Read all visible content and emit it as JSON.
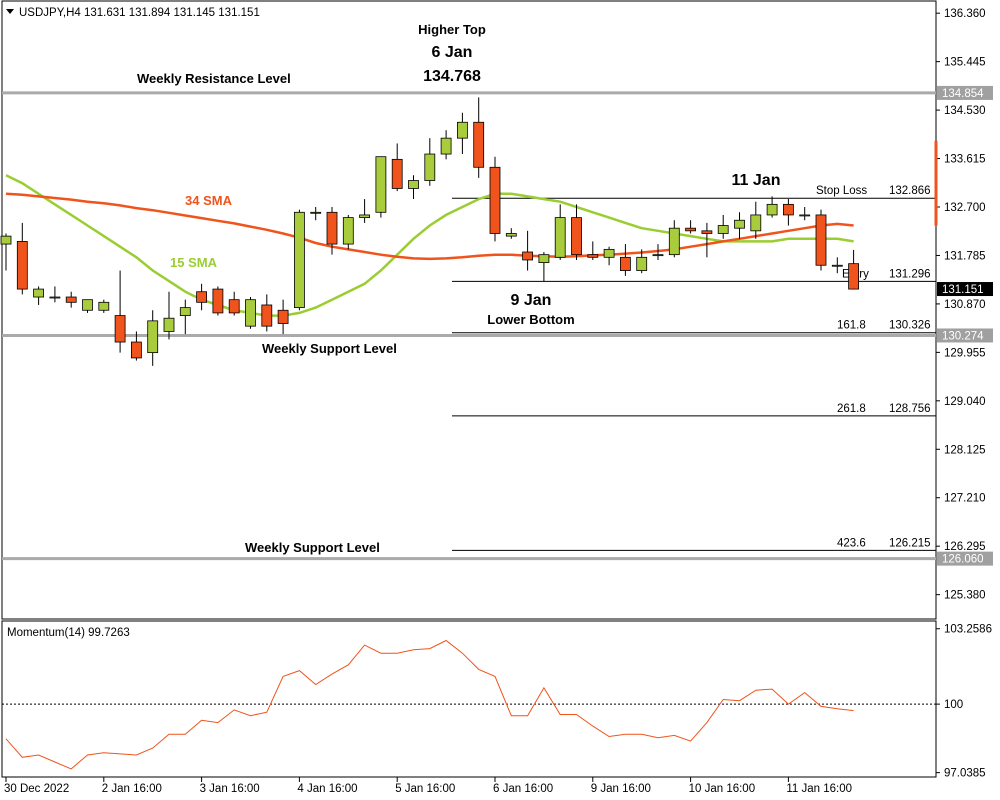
{
  "header": {
    "symbol_info": "USDJPY,H4  131.631 131.894 131.145 131.151"
  },
  "chart_data": {
    "type": "candlestick",
    "ylim": [
      124.92,
      136.59
    ],
    "y_ticks": [
      136.36,
      135.445,
      134.53,
      133.615,
      132.7,
      131.785,
      130.87,
      129.955,
      129.04,
      128.125,
      127.21,
      126.295,
      125.38
    ],
    "x_ticks": [
      "30 Dec 2022",
      "2 Jan 16:00",
      "3 Jan 16:00",
      "4 Jan 16:00",
      "5 Jan 16:00",
      "6 Jan 16:00",
      "9 Jan 16:00",
      "10 Jan 16:00",
      "11 Jan 16:00"
    ],
    "x_tick_index": [
      0,
      6,
      12,
      18,
      24,
      30,
      36,
      42,
      48
    ],
    "candles": [
      [
        132.0,
        132.2,
        131.5,
        132.15
      ],
      [
        132.05,
        132.4,
        131.05,
        131.15
      ],
      [
        131.0,
        131.2,
        130.85,
        131.15
      ],
      [
        131.0,
        131.2,
        130.9,
        131.0
      ],
      [
        131.0,
        131.1,
        130.8,
        130.9
      ],
      [
        130.75,
        130.95,
        130.7,
        130.95
      ],
      [
        130.75,
        130.95,
        130.7,
        130.9
      ],
      [
        130.65,
        131.5,
        129.95,
        130.15
      ],
      [
        130.15,
        130.35,
        129.8,
        129.85
      ],
      [
        129.95,
        130.75,
        129.7,
        130.55
      ],
      [
        130.35,
        131.1,
        130.2,
        130.6
      ],
      [
        130.65,
        130.95,
        130.3,
        130.8
      ],
      [
        131.1,
        131.25,
        130.75,
        130.9
      ],
      [
        131.15,
        131.2,
        130.65,
        130.7
      ],
      [
        130.95,
        131.1,
        130.65,
        130.7
      ],
      [
        130.45,
        131.0,
        130.4,
        130.95
      ],
      [
        130.85,
        131.05,
        130.35,
        130.45
      ],
      [
        130.75,
        130.95,
        130.3,
        130.5
      ],
      [
        130.8,
        132.65,
        130.75,
        132.6
      ],
      [
        132.6,
        132.7,
        132.45,
        132.6
      ],
      [
        132.6,
        132.7,
        131.8,
        132.0
      ],
      [
        132.0,
        132.55,
        131.9,
        132.5
      ],
      [
        132.5,
        132.85,
        132.4,
        132.55
      ],
      [
        132.6,
        133.65,
        132.5,
        133.65
      ],
      [
        133.6,
        133.9,
        133.0,
        133.05
      ],
      [
        133.05,
        133.3,
        132.85,
        133.2
      ],
      [
        133.2,
        134.0,
        133.1,
        133.7
      ],
      [
        133.7,
        134.15,
        133.6,
        134.0
      ],
      [
        134.0,
        134.48,
        133.7,
        134.3
      ],
      [
        134.3,
        134.77,
        133.25,
        133.45
      ],
      [
        133.45,
        133.65,
        132.05,
        132.2
      ],
      [
        132.15,
        132.3,
        132.1,
        132.2
      ],
      [
        131.85,
        132.25,
        131.5,
        131.7
      ],
      [
        131.65,
        131.85,
        131.3,
        131.8
      ],
      [
        131.75,
        132.75,
        131.7,
        132.5
      ],
      [
        132.5,
        132.75,
        131.7,
        131.8
      ],
      [
        131.8,
        132.05,
        131.7,
        131.75
      ],
      [
        131.75,
        131.95,
        131.6,
        131.9
      ],
      [
        131.75,
        132.0,
        131.4,
        131.5
      ],
      [
        131.5,
        131.9,
        131.45,
        131.75
      ],
      [
        131.8,
        132.0,
        131.7,
        131.8
      ],
      [
        131.8,
        132.45,
        131.75,
        132.3
      ],
      [
        132.3,
        132.45,
        132.2,
        132.25
      ],
      [
        132.25,
        132.4,
        131.75,
        132.2
      ],
      [
        132.2,
        132.55,
        132.1,
        132.35
      ],
      [
        132.3,
        132.6,
        132.1,
        132.45
      ],
      [
        132.25,
        132.8,
        132.1,
        132.55
      ],
      [
        132.55,
        132.9,
        132.5,
        132.75
      ],
      [
        132.75,
        132.85,
        132.35,
        132.55
      ],
      [
        132.55,
        132.7,
        132.45,
        132.55
      ],
      [
        132.55,
        132.65,
        131.5,
        131.6
      ],
      [
        131.6,
        131.75,
        131.45,
        131.6
      ],
      [
        131.63,
        131.89,
        131.15,
        131.15
      ]
    ],
    "sma15": [
      133.3,
      133.15,
      132.95,
      132.75,
      132.55,
      132.35,
      132.15,
      131.95,
      131.75,
      131.5,
      131.3,
      131.1,
      130.95,
      130.85,
      130.75,
      130.7,
      130.65,
      130.65,
      130.7,
      130.8,
      130.95,
      131.1,
      131.25,
      131.5,
      131.8,
      132.1,
      132.35,
      132.55,
      132.7,
      132.85,
      132.95,
      132.95,
      132.9,
      132.85,
      132.8,
      132.7,
      132.6,
      132.5,
      132.4,
      132.3,
      132.25,
      132.2,
      132.15,
      132.1,
      132.05,
      132.05,
      132.05,
      132.05,
      132.1,
      132.1,
      132.1,
      132.1,
      132.05
    ],
    "sma34": [
      132.95,
      132.93,
      132.9,
      132.87,
      132.84,
      132.8,
      132.77,
      132.73,
      132.68,
      132.64,
      132.59,
      132.54,
      132.49,
      132.44,
      132.39,
      132.33,
      132.27,
      132.2,
      132.12,
      132.02,
      131.95,
      131.9,
      131.85,
      131.8,
      131.76,
      131.73,
      131.72,
      131.73,
      131.75,
      131.78,
      131.8,
      131.8,
      131.78,
      131.77,
      131.76,
      131.77,
      131.79,
      131.8,
      131.82,
      131.84,
      131.87,
      131.9,
      131.95,
      132.0,
      132.05,
      132.1,
      132.15,
      132.2,
      132.25,
      132.3,
      132.35,
      132.38,
      132.35
    ],
    "levels": [
      {
        "value": 134.854,
        "label": "134.854"
      },
      {
        "value": 130.274,
        "label": "130.274"
      },
      {
        "value": 126.06,
        "label": "126.060"
      }
    ],
    "fib_lines": [
      {
        "value": 132.866,
        "label": "Stop Loss",
        "price": "132.866"
      },
      {
        "value": 131.296,
        "label": "Entry",
        "price": "131.296"
      },
      {
        "value": 130.326,
        "label": "161.8",
        "price": "130.326"
      },
      {
        "value": 128.756,
        "label": "261.8",
        "price": "128.756"
      },
      {
        "value": 126.215,
        "label": "423.6",
        "price": "126.215"
      }
    ],
    "current_price": "131.151",
    "current_value": 131.151,
    "annotations": {
      "higher_top": "Higher Top",
      "jan6": "6 Jan",
      "top_price": "134.768",
      "weekly_resistance": "Weekly Resistance Level",
      "sma34": "34 SMA",
      "sma15": "15 SMA",
      "jan11": "11 Jan",
      "jan9": "9 Jan",
      "lower_bottom": "Lower Bottom",
      "weekly_support_1": "Weekly Support Level",
      "weekly_support_2": "Weekly Support Level"
    },
    "momentum": {
      "label": "Momentum(14) 99.7263",
      "ylim": [
        96.85,
        103.55
      ],
      "y_ticks": [
        103.2586,
        100,
        97.0385
      ],
      "y_tick_labels": [
        "103.2586",
        "100",
        "97.0385"
      ],
      "reference": 100,
      "values": [
        98.5,
        97.7,
        97.8,
        97.5,
        97.2,
        97.8,
        97.9,
        97.85,
        97.8,
        98.1,
        98.7,
        98.7,
        99.3,
        99.2,
        99.75,
        99.5,
        99.65,
        101.2,
        101.45,
        100.85,
        101.3,
        101.7,
        102.55,
        102.2,
        102.2,
        102.35,
        102.4,
        102.75,
        102.2,
        101.5,
        101.2,
        99.5,
        99.5,
        100.7,
        99.55,
        99.55,
        99.05,
        98.6,
        98.7,
        98.7,
        98.55,
        98.65,
        98.4,
        99.2,
        100.2,
        100.15,
        100.6,
        100.65,
        100.0,
        100.5,
        99.9,
        99.8,
        99.72
      ]
    }
  }
}
